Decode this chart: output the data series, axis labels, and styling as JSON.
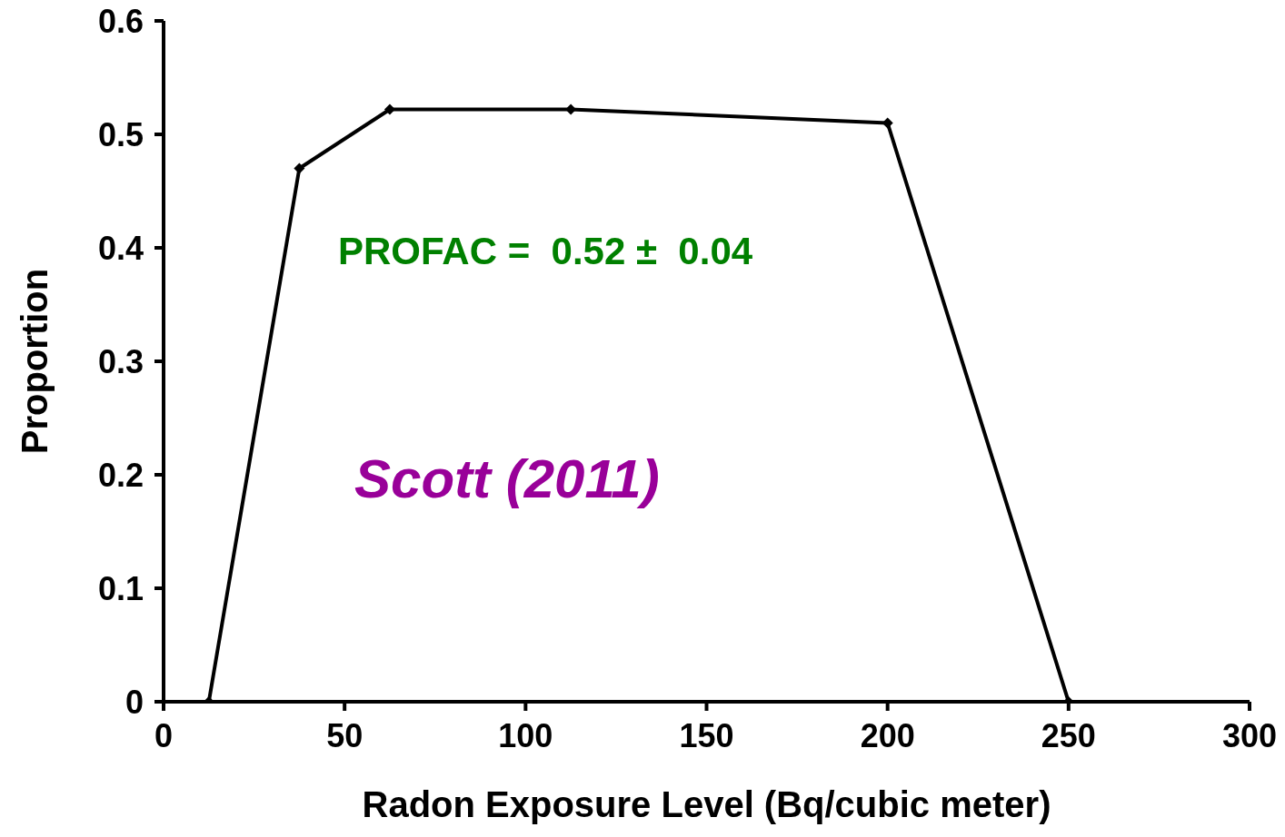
{
  "chart_data": {
    "type": "line",
    "xlabel": "Radon Exposure Level (Bq/cubic meter)",
    "ylabel": "Proportion",
    "x": [
      12.5,
      37.5,
      62.5,
      112.5,
      200,
      250
    ],
    "series": [
      {
        "color": "#000000",
        "values": [
          0,
          0.47,
          0.522,
          0.522,
          0.51,
          0
        ]
      }
    ],
    "xlim": [
      0,
      300
    ],
    "xticks": [
      0,
      50,
      100,
      150,
      200,
      250,
      300
    ],
    "ylim": [
      0,
      0.6
    ],
    "yticks": [
      0,
      {
        "value": 0.1,
        "label": "0.1"
      },
      {
        "value": 0.2,
        "label": "0.2"
      },
      {
        "value": 0.3,
        "label": "0.3"
      },
      {
        "value": 0.4,
        "label": "0.4"
      },
      {
        "value": 0.5,
        "label": "0.5"
      },
      {
        "value": 0.6,
        "label": "0.6"
      }
    ],
    "annotations": [
      "PROFAC =  0.52 ±  0.04",
      "Scott (2011)"
    ],
    "grid": false,
    "legend": false,
    "marker": "diamond",
    "line_style": "solid"
  }
}
